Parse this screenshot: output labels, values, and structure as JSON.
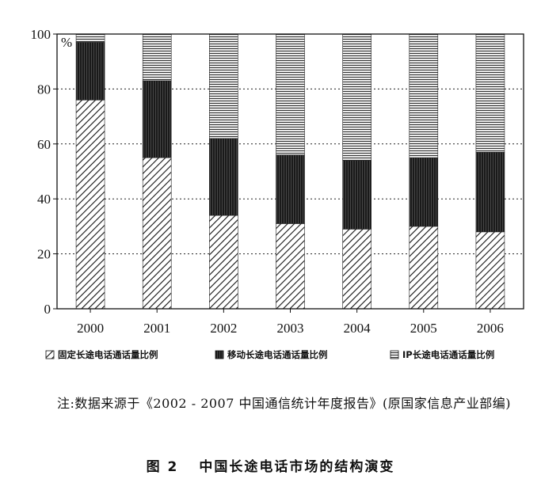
{
  "chart_data": {
    "type": "bar",
    "stacked": true,
    "unit_label": "%",
    "categories": [
      "2000",
      "2001",
      "2002",
      "2003",
      "2004",
      "2005",
      "2006"
    ],
    "series": [
      {
        "name": "固定长途电话通话量比例",
        "values": [
          76,
          55,
          34,
          31,
          29,
          30,
          28
        ],
        "pattern": "diagonal-hatch"
      },
      {
        "name": "移动长途电话通话量比例",
        "values": [
          21,
          28,
          28,
          25,
          25,
          25,
          29
        ],
        "pattern": "dark-vertical"
      },
      {
        "name": "IP长途电话通话量比例",
        "values": [
          3,
          17,
          38,
          44,
          46,
          45,
          43
        ],
        "pattern": "horizontal-lines"
      }
    ],
    "ylim": [
      0,
      100
    ],
    "yticks": [
      0,
      20,
      40,
      60,
      80,
      100
    ],
    "grid": "horizontal-dotted",
    "legend_position": "bottom"
  },
  "note": "注:数据来源于《2002 - 2007 中国通信统计年度报告》(原国家信息产业部编)",
  "caption": {
    "number": "图 2",
    "title": "中国长途电话市场的结构演变"
  }
}
